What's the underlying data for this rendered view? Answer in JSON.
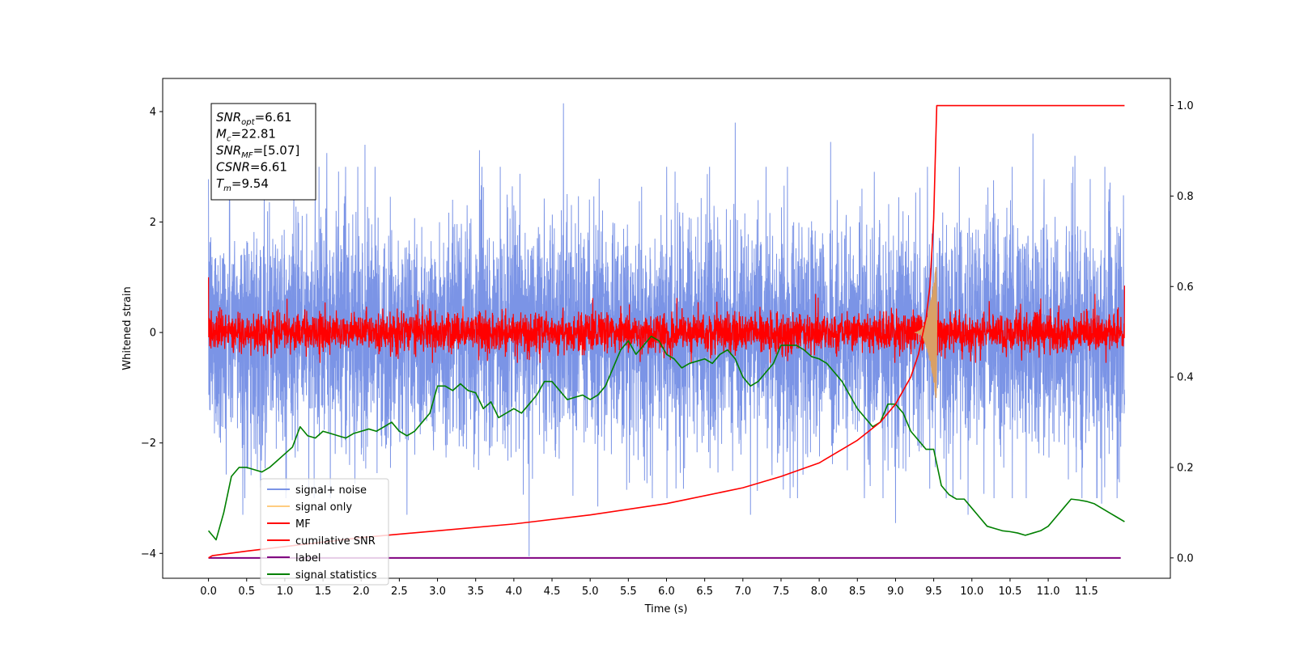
{
  "chart_data": {
    "type": "line",
    "xlabel": "Time (s)",
    "ylabel": "Whitened strain",
    "ylabel_right": "",
    "xlim": [
      -0.6,
      12.6
    ],
    "ylim": [
      -4.45,
      4.6
    ],
    "ylim_right": [
      -0.045,
      1.06
    ],
    "x_ticks": [
      "0.0",
      "0.5",
      "1.0",
      "1.5",
      "2.0",
      "2.5",
      "3.0",
      "3.5",
      "4.0",
      "4.5",
      "5.0",
      "5.5",
      "6.0",
      "6.5",
      "7.0",
      "7.5",
      "8.0",
      "8.5",
      "9.0",
      "9.5",
      "10.0",
      "10.5",
      "11.0",
      "11.5"
    ],
    "y_ticks": [
      "-4",
      "-2",
      "0",
      "2",
      "4"
    ],
    "y_ticks_right": [
      "0.0",
      "0.2",
      "0.4",
      "0.6",
      "0.8",
      "1.0"
    ],
    "annotation": {
      "lines": [
        {
          "var": "SNR",
          "sub": "opt",
          "value": "=6.61"
        },
        {
          "var": "M",
          "sub": "c",
          "value": "=22.81"
        },
        {
          "var": "SNR",
          "sub": "MF",
          "value": "=[5.07]"
        },
        {
          "var": "CSNR",
          "sub": "",
          "value": "=6.61"
        },
        {
          "var": "T",
          "sub": "m",
          "value": "=9.54"
        }
      ]
    },
    "legend": {
      "placement": "lower-left",
      "entries": [
        {
          "label": "signal+ noise",
          "color": "#7b94e6"
        },
        {
          "label": "signal only",
          "color": "#ffcc80"
        },
        {
          "label": "MF",
          "color": "#ff0000"
        },
        {
          "label": "cumilative SNR",
          "color": "#ff0000"
        },
        {
          "label": "label",
          "color": "#800080"
        },
        {
          "label": "signal statistics",
          "color": "#008000"
        }
      ]
    },
    "series": [
      {
        "name": "signal+ noise",
        "axis": "left",
        "color": "#7b94e6",
        "x_range": [
          0,
          12
        ],
        "noise_std": 1.0,
        "peaks": [
          [
            4.65,
            4.15
          ],
          [
            4.2,
            -4.05
          ],
          [
            6.9,
            3.8
          ],
          [
            10.8,
            3.6
          ],
          [
            1.55,
            3.25
          ],
          [
            2.05,
            3.4
          ],
          [
            3.55,
            3.3
          ],
          [
            8.15,
            3.45
          ],
          [
            11.35,
            3.2
          ],
          [
            0.45,
            -3.3
          ],
          [
            2.6,
            -3.3
          ],
          [
            5.1,
            -3.15
          ],
          [
            7.1,
            -3.3
          ],
          [
            9.0,
            -3.45
          ],
          [
            9.95,
            -3.3
          ],
          [
            11.7,
            -3.1
          ]
        ]
      },
      {
        "name": "signal only",
        "axis": "left",
        "color": "#d9a066",
        "chirp_end": 9.54,
        "chirp_start": 9.25,
        "amplitude": 1.3
      },
      {
        "name": "MF",
        "axis": "left",
        "color": "#ff0000",
        "x_range": [
          0,
          12
        ],
        "noise_std": 0.18,
        "start_value": 1.0,
        "end_value": 0.85
      },
      {
        "name": "cumilative SNR",
        "axis": "right",
        "color": "#ff0000",
        "x": [
          0.0,
          0.05,
          0.5,
          1.0,
          2.0,
          3.0,
          4.0,
          5.0,
          6.0,
          7.0,
          7.5,
          8.0,
          8.5,
          8.8,
          9.0,
          9.2,
          9.3,
          9.4,
          9.45,
          9.5,
          9.52,
          9.54,
          9.6,
          10.0,
          11.0,
          12.0
        ],
        "y": [
          0.0,
          0.005,
          0.015,
          0.025,
          0.045,
          0.06,
          0.075,
          0.095,
          0.12,
          0.155,
          0.18,
          0.21,
          0.26,
          0.3,
          0.34,
          0.4,
          0.45,
          0.53,
          0.6,
          0.75,
          0.88,
          1.0,
          1.0,
          1.0,
          1.0,
          1.0
        ]
      },
      {
        "name": "label",
        "axis": "right",
        "color": "#800080",
        "x": [
          0.0,
          11.95
        ],
        "y": [
          0.0,
          0.0
        ]
      },
      {
        "name": "signal statistics",
        "axis": "right",
        "color": "#008000",
        "x": [
          0.0,
          0.1,
          0.2,
          0.3,
          0.4,
          0.5,
          0.6,
          0.7,
          0.8,
          0.9,
          1.0,
          1.1,
          1.2,
          1.3,
          1.4,
          1.5,
          1.6,
          1.7,
          1.8,
          1.9,
          2.0,
          2.1,
          2.2,
          2.3,
          2.4,
          2.5,
          2.6,
          2.7,
          2.8,
          2.9,
          3.0,
          3.1,
          3.2,
          3.3,
          3.4,
          3.5,
          3.6,
          3.7,
          3.8,
          3.9,
          4.0,
          4.1,
          4.2,
          4.3,
          4.4,
          4.5,
          4.6,
          4.7,
          4.8,
          4.9,
          5.0,
          5.1,
          5.2,
          5.3,
          5.4,
          5.5,
          5.6,
          5.7,
          5.8,
          5.9,
          6.0,
          6.1,
          6.2,
          6.3,
          6.4,
          6.5,
          6.6,
          6.7,
          6.8,
          6.9,
          7.0,
          7.1,
          7.2,
          7.3,
          7.4,
          7.5,
          7.6,
          7.7,
          7.8,
          7.9,
          8.0,
          8.1,
          8.2,
          8.3,
          8.4,
          8.5,
          8.6,
          8.7,
          8.8,
          8.9,
          9.0,
          9.1,
          9.2,
          9.3,
          9.4,
          9.5,
          9.6,
          9.7,
          9.8,
          9.9,
          10.0,
          10.1,
          10.2,
          10.3,
          10.4,
          10.5,
          10.6,
          10.7,
          10.8,
          10.9,
          11.0,
          11.1,
          11.2,
          11.3,
          11.4,
          11.5,
          11.6,
          11.7,
          11.8,
          11.9,
          12.0
        ],
        "y": [
          0.06,
          0.04,
          0.1,
          0.18,
          0.2,
          0.2,
          0.195,
          0.19,
          0.2,
          0.215,
          0.23,
          0.245,
          0.29,
          0.27,
          0.265,
          0.28,
          0.275,
          0.27,
          0.265,
          0.275,
          0.28,
          0.285,
          0.28,
          0.29,
          0.3,
          0.28,
          0.27,
          0.28,
          0.3,
          0.32,
          0.38,
          0.38,
          0.37,
          0.385,
          0.37,
          0.365,
          0.33,
          0.345,
          0.31,
          0.32,
          0.33,
          0.32,
          0.34,
          0.36,
          0.39,
          0.39,
          0.37,
          0.35,
          0.355,
          0.36,
          0.35,
          0.36,
          0.38,
          0.42,
          0.46,
          0.48,
          0.45,
          0.47,
          0.49,
          0.48,
          0.45,
          0.44,
          0.42,
          0.43,
          0.435,
          0.44,
          0.43,
          0.45,
          0.46,
          0.44,
          0.4,
          0.38,
          0.39,
          0.41,
          0.43,
          0.47,
          0.47,
          0.47,
          0.46,
          0.445,
          0.44,
          0.43,
          0.41,
          0.39,
          0.36,
          0.33,
          0.31,
          0.29,
          0.3,
          0.34,
          0.34,
          0.32,
          0.28,
          0.26,
          0.24,
          0.24,
          0.16,
          0.14,
          0.13,
          0.13,
          0.11,
          0.09,
          0.07,
          0.065,
          0.06,
          0.058,
          0.055,
          0.05,
          0.055,
          0.06,
          0.07,
          0.09,
          0.11,
          0.13,
          0.128,
          0.125,
          0.12,
          0.11,
          0.1,
          0.09,
          0.08
        ]
      }
    ]
  }
}
